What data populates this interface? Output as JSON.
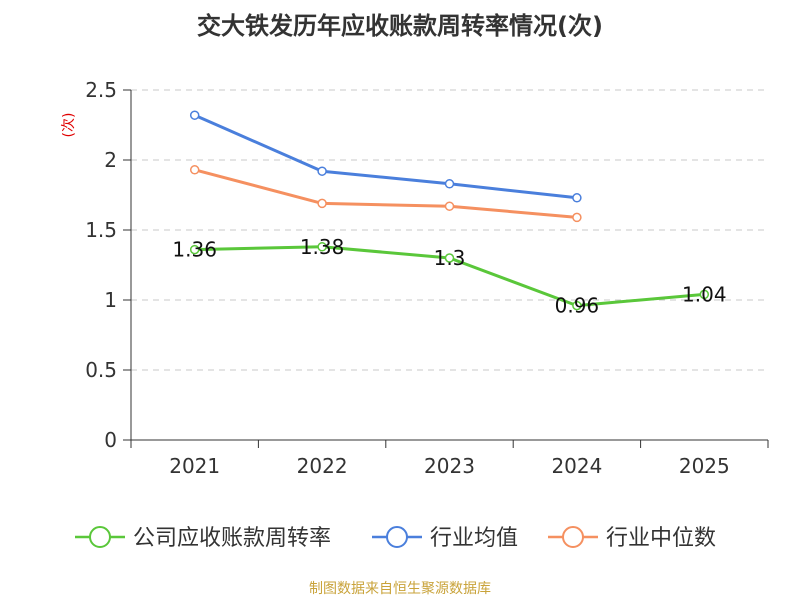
{
  "chart_data": {
    "type": "line",
    "title": "交大铁发历年应收账款周转率情况(次)",
    "ylabel": "(次)",
    "categories": [
      "2021",
      "2022",
      "2023",
      "2024",
      "2025"
    ],
    "ylim": [
      0,
      2.5
    ],
    "yticks": [
      "0",
      "0.5",
      "1",
      "1.5",
      "2",
      "2.5"
    ],
    "grid": true,
    "legend_position": "bottom",
    "series": [
      {
        "name": "公司应收账款周转率",
        "color": "#5ac73a",
        "values": [
          1.36,
          1.38,
          1.3,
          0.96,
          1.04
        ],
        "labels": [
          "1.36",
          "1.38",
          "1.3",
          "0.96",
          "1.04"
        ]
      },
      {
        "name": "行业均值",
        "color": "#4a7fdc",
        "values": [
          2.32,
          1.92,
          1.83,
          1.73,
          null
        ],
        "labels": null
      },
      {
        "name": "行业中位数",
        "color": "#f59060",
        "values": [
          1.93,
          1.69,
          1.67,
          1.59,
          null
        ],
        "labels": null
      }
    ]
  },
  "footer": {
    "source": "制图数据来自恒生聚源数据库",
    "source_color": "#c9a33a"
  },
  "ylabel_color": "#e00000"
}
